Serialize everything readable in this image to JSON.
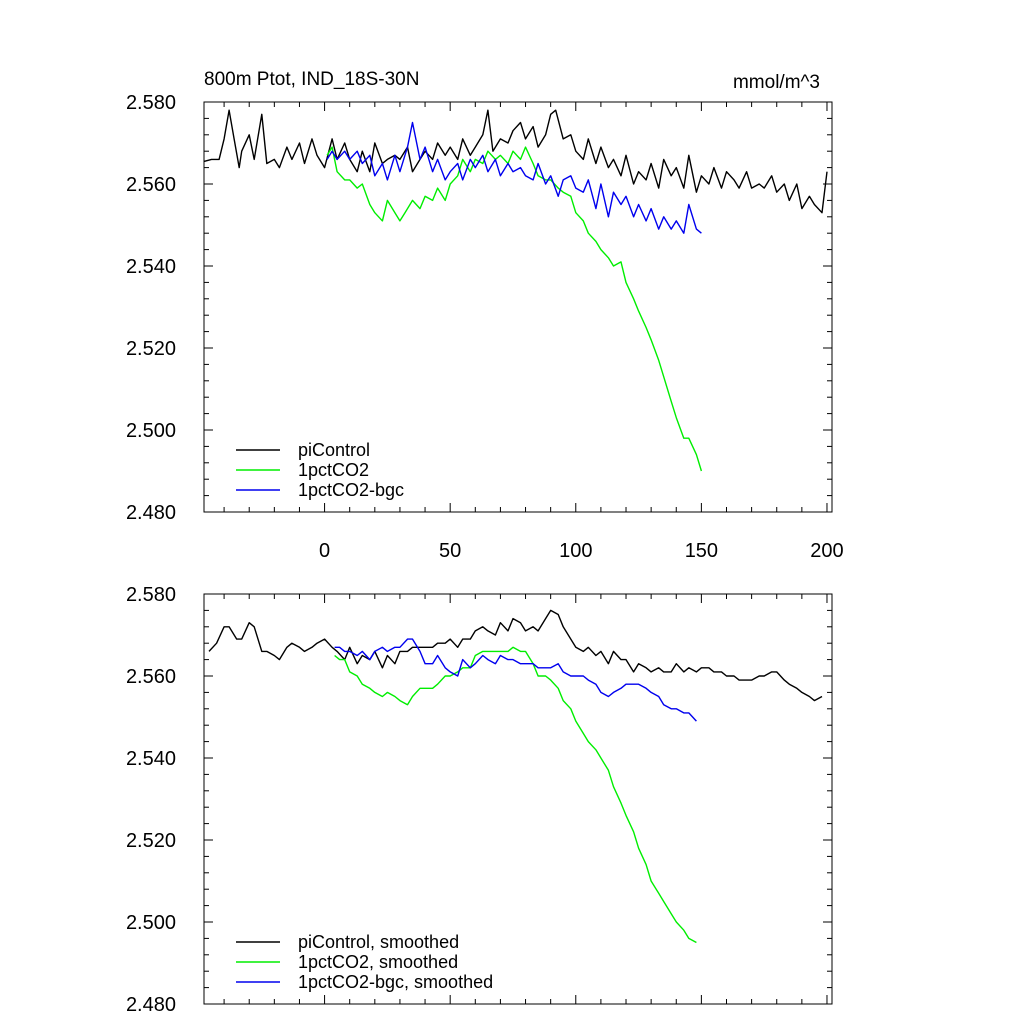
{
  "chart_data": [
    {
      "type": "line",
      "title": "800m Ptot, IND_18S-30N",
      "units": "mmol/m^3",
      "xlim": [
        -48,
        202
      ],
      "ylim": [
        2.48,
        2.58
      ],
      "x_ticks": [
        0,
        50,
        100,
        150,
        200
      ],
      "x_tick_labels": [
        "0",
        "50",
        "100",
        "150",
        "200"
      ],
      "y_ticks": [
        2.48,
        2.5,
        2.52,
        2.54,
        2.56,
        2.58
      ],
      "y_tick_labels": [
        "2.480",
        "2.500",
        "2.520",
        "2.540",
        "2.560",
        "2.580"
      ],
      "legend_position": "bottom-left",
      "series": [
        {
          "name": "piControl",
          "color": "#000000",
          "x": [
            -48,
            -45,
            -42,
            -40,
            -38,
            -36,
            -34,
            -33,
            -30,
            -28,
            -25,
            -23,
            -20,
            -18,
            -15,
            -13,
            -10,
            -8,
            -5,
            -3,
            0,
            3,
            5,
            8,
            10,
            13,
            15,
            18,
            20,
            23,
            25,
            28,
            30,
            33,
            35,
            38,
            40,
            43,
            45,
            48,
            50,
            53,
            55,
            58,
            60,
            63,
            65,
            67,
            70,
            73,
            75,
            78,
            80,
            83,
            85,
            88,
            90,
            92,
            95,
            98,
            100,
            103,
            105,
            108,
            110,
            113,
            115,
            118,
            120,
            123,
            125,
            128,
            130,
            133,
            135,
            138,
            140,
            143,
            145,
            148,
            150,
            153,
            155,
            158,
            160,
            163,
            165,
            168,
            170,
            173,
            175,
            178,
            180,
            183,
            185,
            188,
            190,
            193,
            195,
            198,
            200
          ],
          "values": [
            2.5655,
            2.566,
            2.566,
            2.571,
            2.578,
            2.571,
            2.564,
            2.568,
            2.572,
            2.566,
            2.577,
            2.565,
            2.566,
            2.564,
            2.569,
            2.566,
            2.57,
            2.565,
            2.571,
            2.567,
            2.564,
            2.571,
            2.566,
            2.57,
            2.566,
            2.563,
            2.568,
            2.563,
            2.57,
            2.565,
            2.566,
            2.567,
            2.566,
            2.569,
            2.563,
            2.566,
            2.568,
            2.566,
            2.57,
            2.567,
            2.569,
            2.566,
            2.571,
            2.567,
            2.569,
            2.572,
            2.578,
            2.568,
            2.571,
            2.57,
            2.573,
            2.575,
            2.571,
            2.574,
            2.569,
            2.572,
            2.577,
            2.578,
            2.571,
            2.572,
            2.568,
            2.566,
            2.571,
            2.565,
            2.569,
            2.564,
            2.566,
            2.562,
            2.567,
            2.56,
            2.563,
            2.561,
            2.565,
            2.559,
            2.566,
            2.562,
            2.564,
            2.559,
            2.567,
            2.558,
            2.562,
            2.56,
            2.564,
            2.559,
            2.563,
            2.561,
            2.559,
            2.563,
            2.559,
            2.56,
            2.559,
            2.562,
            2.558,
            2.56,
            2.556,
            2.56,
            2.554,
            2.557,
            2.555,
            2.553,
            2.563
          ]
        },
        {
          "name": "1pctCO2",
          "color": "#00ee00",
          "x": [
            1,
            3,
            5,
            8,
            10,
            13,
            15,
            18,
            20,
            23,
            25,
            28,
            30,
            32,
            35,
            38,
            40,
            43,
            45,
            48,
            50,
            53,
            55,
            58,
            60,
            63,
            65,
            68,
            70,
            73,
            75,
            78,
            80,
            83,
            85,
            88,
            90,
            93,
            95,
            98,
            100,
            103,
            105,
            108,
            110,
            113,
            115,
            118,
            120,
            123,
            125,
            128,
            130,
            133,
            135,
            138,
            140,
            143,
            145,
            148,
            150
          ],
          "values": [
            2.567,
            2.569,
            2.563,
            2.561,
            2.561,
            2.559,
            2.56,
            2.555,
            2.553,
            2.551,
            2.556,
            2.553,
            2.551,
            2.553,
            2.556,
            2.554,
            2.557,
            2.556,
            2.559,
            2.556,
            2.56,
            2.562,
            2.566,
            2.563,
            2.566,
            2.565,
            2.568,
            2.566,
            2.567,
            2.565,
            2.568,
            2.566,
            2.569,
            2.565,
            2.562,
            2.561,
            2.561,
            2.559,
            2.558,
            2.557,
            2.553,
            2.551,
            2.548,
            2.546,
            2.544,
            2.542,
            2.54,
            2.541,
            2.536,
            2.532,
            2.529,
            2.525,
            2.522,
            2.517,
            2.513,
            2.507,
            2.503,
            2.498,
            2.498,
            2.494,
            2.49
          ]
        },
        {
          "name": "1pctCO2-bgc",
          "color": "#0000ee",
          "x": [
            1,
            3,
            5,
            8,
            10,
            13,
            15,
            18,
            20,
            23,
            25,
            28,
            30,
            33,
            35,
            38,
            40,
            43,
            45,
            48,
            50,
            53,
            55,
            58,
            60,
            63,
            65,
            68,
            70,
            73,
            75,
            78,
            80,
            83,
            85,
            88,
            90,
            93,
            95,
            98,
            100,
            103,
            105,
            108,
            110,
            113,
            115,
            118,
            120,
            123,
            125,
            128,
            130,
            133,
            135,
            138,
            140,
            143,
            145,
            148,
            150
          ],
          "values": [
            2.566,
            2.568,
            2.566,
            2.568,
            2.566,
            2.568,
            2.565,
            2.567,
            2.562,
            2.565,
            2.561,
            2.567,
            2.563,
            2.569,
            2.575,
            2.566,
            2.569,
            2.563,
            2.566,
            2.561,
            2.563,
            2.565,
            2.561,
            2.566,
            2.564,
            2.567,
            2.563,
            2.566,
            2.562,
            2.565,
            2.563,
            2.564,
            2.562,
            2.561,
            2.565,
            2.56,
            2.562,
            2.557,
            2.561,
            2.562,
            2.559,
            2.558,
            2.561,
            2.554,
            2.56,
            2.552,
            2.558,
            2.555,
            2.557,
            2.552,
            2.555,
            2.551,
            2.554,
            2.549,
            2.552,
            2.549,
            2.551,
            2.548,
            2.555,
            2.549,
            2.548
          ]
        }
      ]
    },
    {
      "type": "line",
      "xlim": [
        -48,
        202
      ],
      "ylim": [
        2.48,
        2.58
      ],
      "x_ticks": [
        0,
        50,
        100,
        150,
        200
      ],
      "y_ticks": [
        2.48,
        2.5,
        2.52,
        2.54,
        2.56,
        2.58
      ],
      "y_tick_labels": [
        "2.480",
        "2.500",
        "2.520",
        "2.540",
        "2.560",
        "2.580"
      ],
      "legend_position": "bottom-left",
      "series": [
        {
          "name": "piControl, smoothed",
          "color": "#000000",
          "x": [
            -46,
            -43,
            -40,
            -38,
            -35,
            -33,
            -30,
            -28,
            -25,
            -23,
            -20,
            -18,
            -15,
            -13,
            -10,
            -8,
            -5,
            -3,
            0,
            3,
            5,
            8,
            10,
            13,
            15,
            18,
            20,
            23,
            25,
            28,
            30,
            33,
            35,
            38,
            40,
            43,
            45,
            48,
            50,
            53,
            55,
            58,
            60,
            63,
            65,
            68,
            70,
            73,
            75,
            78,
            80,
            83,
            85,
            88,
            90,
            93,
            95,
            98,
            100,
            103,
            105,
            108,
            110,
            113,
            115,
            118,
            120,
            123,
            125,
            128,
            130,
            133,
            135,
            138,
            140,
            143,
            145,
            148,
            150,
            153,
            155,
            158,
            160,
            163,
            165,
            168,
            170,
            173,
            175,
            178,
            180,
            183,
            185,
            188,
            190,
            193,
            195,
            198
          ],
          "values": [
            2.566,
            2.568,
            2.572,
            2.572,
            2.569,
            2.569,
            2.573,
            2.572,
            2.566,
            2.566,
            2.565,
            2.564,
            2.567,
            2.568,
            2.567,
            2.566,
            2.567,
            2.568,
            2.569,
            2.567,
            2.566,
            2.564,
            2.567,
            2.563,
            2.565,
            2.564,
            2.566,
            2.562,
            2.565,
            2.563,
            2.566,
            2.566,
            2.567,
            2.567,
            2.567,
            2.567,
            2.568,
            2.568,
            2.569,
            2.567,
            2.569,
            2.569,
            2.571,
            2.572,
            2.571,
            2.57,
            2.573,
            2.571,
            2.574,
            2.573,
            2.571,
            2.572,
            2.571,
            2.574,
            2.576,
            2.575,
            2.572,
            2.569,
            2.567,
            2.566,
            2.567,
            2.565,
            2.566,
            2.563,
            2.566,
            2.564,
            2.564,
            2.561,
            2.563,
            2.562,
            2.561,
            2.562,
            2.561,
            2.561,
            2.563,
            2.561,
            2.562,
            2.561,
            2.562,
            2.562,
            2.561,
            2.561,
            2.56,
            2.56,
            2.559,
            2.559,
            2.559,
            2.56,
            2.56,
            2.561,
            2.561,
            2.559,
            2.558,
            2.557,
            2.556,
            2.555,
            2.554,
            2.555
          ]
        },
        {
          "name": "1pctCO2, smoothed",
          "color": "#00ee00",
          "x": [
            4,
            6,
            8,
            10,
            13,
            15,
            18,
            20,
            23,
            25,
            28,
            30,
            33,
            35,
            38,
            40,
            43,
            45,
            48,
            50,
            53,
            55,
            58,
            60,
            63,
            65,
            68,
            70,
            73,
            75,
            78,
            80,
            83,
            85,
            88,
            90,
            93,
            95,
            98,
            100,
            103,
            105,
            108,
            110,
            113,
            115,
            118,
            120,
            123,
            125,
            128,
            130,
            133,
            135,
            138,
            140,
            143,
            145,
            148
          ],
          "values": [
            2.565,
            2.564,
            2.564,
            2.561,
            2.56,
            2.558,
            2.557,
            2.556,
            2.555,
            2.556,
            2.555,
            2.554,
            2.553,
            2.555,
            2.557,
            2.557,
            2.557,
            2.558,
            2.56,
            2.56,
            2.561,
            2.562,
            2.562,
            2.565,
            2.566,
            2.566,
            2.566,
            2.566,
            2.566,
            2.567,
            2.566,
            2.566,
            2.563,
            2.56,
            2.56,
            2.559,
            2.557,
            2.554,
            2.552,
            2.549,
            2.546,
            2.544,
            2.542,
            2.54,
            2.537,
            2.533,
            2.529,
            2.526,
            2.522,
            2.518,
            2.514,
            2.51,
            2.507,
            2.505,
            2.502,
            2.5,
            2.498,
            2.496,
            2.495
          ]
        },
        {
          "name": "1pctCO2-bgc, smoothed",
          "color": "#0000ee",
          "x": [
            4,
            6,
            8,
            10,
            13,
            15,
            18,
            20,
            23,
            25,
            28,
            30,
            33,
            35,
            38,
            40,
            43,
            45,
            48,
            50,
            53,
            55,
            58,
            60,
            63,
            65,
            68,
            70,
            73,
            75,
            78,
            80,
            83,
            85,
            88,
            90,
            93,
            95,
            98,
            100,
            103,
            105,
            108,
            110,
            113,
            115,
            118,
            120,
            123,
            125,
            128,
            130,
            133,
            135,
            138,
            140,
            143,
            145,
            148
          ],
          "values": [
            2.567,
            2.567,
            2.566,
            2.566,
            2.565,
            2.566,
            2.564,
            2.566,
            2.567,
            2.566,
            2.567,
            2.567,
            2.569,
            2.569,
            2.566,
            2.563,
            2.563,
            2.565,
            2.562,
            2.561,
            2.56,
            2.564,
            2.562,
            2.563,
            2.565,
            2.564,
            2.563,
            2.565,
            2.564,
            2.564,
            2.563,
            2.563,
            2.563,
            2.562,
            2.562,
            2.562,
            2.563,
            2.561,
            2.56,
            2.56,
            2.56,
            2.559,
            2.558,
            2.556,
            2.555,
            2.556,
            2.557,
            2.558,
            2.558,
            2.558,
            2.557,
            2.556,
            2.555,
            2.553,
            2.552,
            2.552,
            2.551,
            2.551,
            2.549
          ]
        }
      ]
    }
  ]
}
